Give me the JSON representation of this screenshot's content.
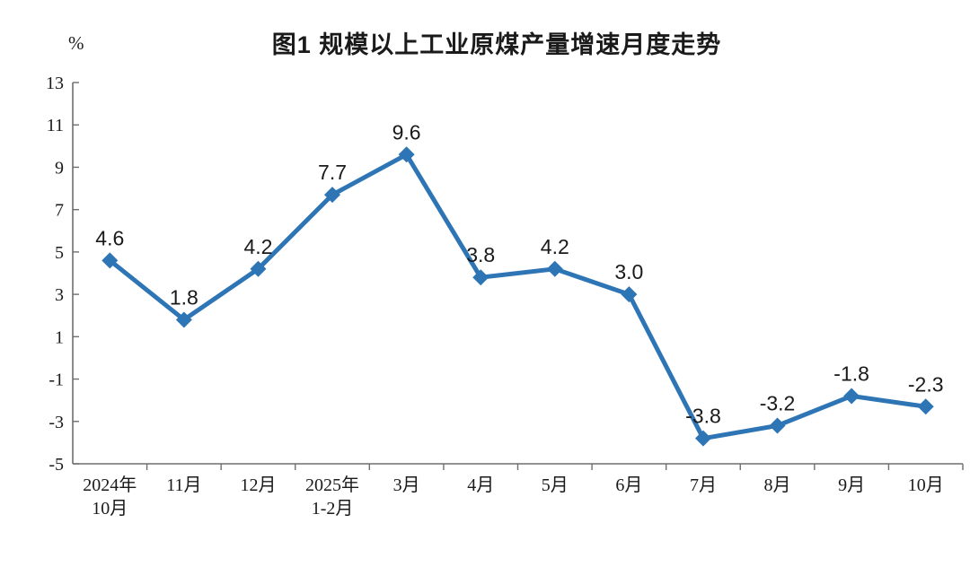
{
  "chart_data": {
    "type": "line",
    "title": "图1  规模以上工业原煤产量增速月度走势",
    "ylabel": "%",
    "xlabel": "",
    "categories": [
      "2024年\n10月",
      "11月",
      "12月",
      "2025年\n1-2月",
      "3月",
      "4月",
      "5月",
      "6月",
      "7月",
      "8月",
      "9月",
      "10月"
    ],
    "values": [
      4.6,
      1.8,
      4.2,
      7.7,
      9.6,
      3.8,
      4.2,
      3.0,
      -3.8,
      -3.2,
      -1.8,
      -2.3
    ],
    "data_labels": [
      "4.6",
      "1.8",
      "4.2",
      "7.7",
      "9.6",
      "3.8",
      "4.2",
      "3.0",
      "-3.8",
      "-3.2",
      "-1.8",
      "-2.3"
    ],
    "ylim": [
      -5,
      13
    ],
    "yticks": [
      13,
      11,
      9,
      7,
      5,
      3,
      1,
      -1,
      -3,
      -5
    ],
    "grid": false,
    "legend": "none",
    "marker": "diamond",
    "line_color": "#2E75B6",
    "axis_color": "#6e6e6e",
    "text_color": "#1a1a1a"
  }
}
